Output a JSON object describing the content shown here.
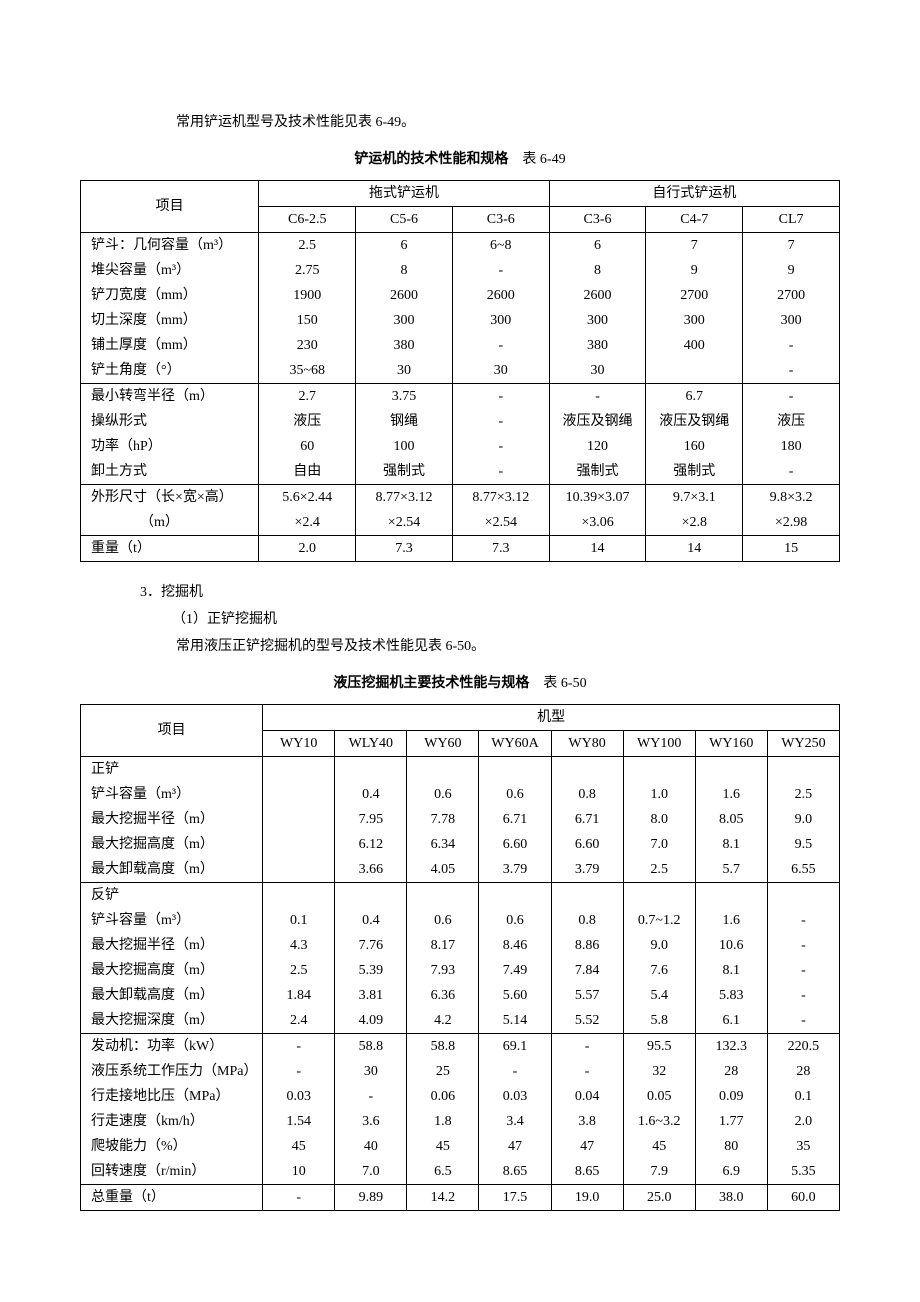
{
  "text": {
    "intro1": "常用铲运机型号及技术性能见表 6-49。",
    "title1_bold": "铲运机的技术性能和规格",
    "title1_num": "　表 6-49",
    "sec3": "3．挖掘机",
    "sec3_1": "（1）正铲挖掘机",
    "intro2": "常用液压正铲挖掘机的型号及技术性能见表 6-50。",
    "title2_bold": "液压挖掘机主要技术性能与规格",
    "title2_num": "　表 6-50"
  },
  "table1": {
    "header": {
      "item": "项目",
      "group1": "拖式铲运机",
      "group2": "自行式铲运机",
      "cols": [
        "C6-2.5",
        "C5-6",
        "C3-6",
        "C3-6",
        "C4-7",
        "CL7"
      ]
    },
    "col_widths": [
      "23.5%",
      "12.75%",
      "12.75%",
      "12.75%",
      "12.75%",
      "12.75%",
      "12.75%"
    ],
    "groups": [
      {
        "rows": [
          {
            "label": "铲斗：几何容量（m³）",
            "vals": [
              "2.5",
              "6",
              "6~8",
              "6",
              "7",
              "7"
            ]
          },
          {
            "label": "堆尖容量（m³）",
            "vals": [
              "2.75",
              "8",
              "-",
              "8",
              "9",
              "9"
            ]
          },
          {
            "label": "铲刀宽度（mm）",
            "vals": [
              "1900",
              "2600",
              "2600",
              "2600",
              "2700",
              "2700"
            ]
          },
          {
            "label": "切土深度（mm）",
            "vals": [
              "150",
              "300",
              "300",
              "300",
              "300",
              "300"
            ]
          },
          {
            "label": "铺土厚度（mm）",
            "vals": [
              "230",
              "380",
              "-",
              "380",
              "400",
              "-"
            ]
          },
          {
            "label": "铲土角度（°）",
            "vals": [
              "35~68",
              "30",
              "30",
              "30",
              "",
              "-"
            ]
          }
        ]
      },
      {
        "rows": [
          {
            "label": "最小转弯半径（m）",
            "vals": [
              "2.7",
              "3.75",
              "-",
              "-",
              "6.7",
              "-"
            ]
          },
          {
            "label": "操纵形式",
            "vals": [
              "液压",
              "钢绳",
              "-",
              "液压及钢绳",
              "液压及钢绳",
              "液压"
            ]
          },
          {
            "label": "功率（hP）",
            "vals": [
              "60",
              "100",
              "-",
              "120",
              "160",
              "180"
            ]
          },
          {
            "label": "卸土方式",
            "vals": [
              "自由",
              "强制式",
              "-",
              "强制式",
              "强制式",
              "-"
            ]
          }
        ]
      },
      {
        "rows": [
          {
            "label": "外形尺寸（长×宽×高）",
            "vals": [
              "5.6×2.44",
              "8.77×3.12",
              "8.77×3.12",
              "10.39×3.07",
              "9.7×3.1",
              "9.8×3.2"
            ]
          },
          {
            "label": "　　　　（m）",
            "vals": [
              "×2.4",
              "×2.54",
              "×2.54",
              "×3.06",
              "×2.8",
              "×2.98"
            ]
          }
        ]
      },
      {
        "rows": [
          {
            "label": "重量（t）",
            "vals": [
              "2.0",
              "7.3",
              "7.3",
              "14",
              "14",
              "15"
            ]
          }
        ]
      }
    ]
  },
  "table2": {
    "header": {
      "item": "项目",
      "group": "机型",
      "cols": [
        "WY10",
        "WLY40",
        "WY60",
        "WY60A",
        "WY80",
        "WY100",
        "WY160",
        "WY250"
      ]
    },
    "col_widths": [
      "24%",
      "9.5%",
      "9.5%",
      "9.5%",
      "9.5%",
      "9.5%",
      "9.5%",
      "9.5%",
      "9.5%"
    ],
    "groups": [
      {
        "rows": [
          {
            "label": "正铲",
            "vals": [
              "",
              "",
              "",
              "",
              "",
              "",
              "",
              ""
            ]
          },
          {
            "label": "铲斗容量（m³）",
            "vals": [
              "",
              "0.4",
              "0.6",
              "0.6",
              "0.8",
              "1.0",
              "1.6",
              "2.5"
            ]
          },
          {
            "label": "最大挖掘半径（m）",
            "vals": [
              "",
              "7.95",
              "7.78",
              "6.71",
              "6.71",
              "8.0",
              "8.05",
              "9.0"
            ]
          },
          {
            "label": "最大挖掘高度（m）",
            "vals": [
              "",
              "6.12",
              "6.34",
              "6.60",
              "6.60",
              "7.0",
              "8.1",
              "9.5"
            ]
          },
          {
            "label": "最大卸载高度（m）",
            "vals": [
              "",
              "3.66",
              "4.05",
              "3.79",
              "3.79",
              "2.5",
              "5.7",
              "6.55"
            ]
          }
        ]
      },
      {
        "rows": [
          {
            "label": "反铲",
            "vals": [
              "",
              "",
              "",
              "",
              "",
              "",
              "",
              ""
            ]
          },
          {
            "label": "铲斗容量（m³）",
            "vals": [
              "0.1",
              "0.4",
              "0.6",
              "0.6",
              "0.8",
              "0.7~1.2",
              "1.6",
              "-"
            ]
          },
          {
            "label": "最大挖掘半径（m）",
            "vals": [
              "4.3",
              "7.76",
              "8.17",
              "8.46",
              "8.86",
              "9.0",
              "10.6",
              "-"
            ]
          },
          {
            "label": "最大挖掘高度（m）",
            "vals": [
              "2.5",
              "5.39",
              "7.93",
              "7.49",
              "7.84",
              "7.6",
              "8.1",
              "-"
            ]
          },
          {
            "label": "最大卸载高度（m）",
            "vals": [
              "1.84",
              "3.81",
              "6.36",
              "5.60",
              "5.57",
              "5.4",
              "5.83",
              "-"
            ]
          },
          {
            "label": "最大挖掘深度（m）",
            "vals": [
              "2.4",
              "4.09",
              "4.2",
              "5.14",
              "5.52",
              "5.8",
              "6.1",
              "-"
            ]
          }
        ]
      },
      {
        "rows": [
          {
            "label": "发动机：功率（kW）",
            "vals": [
              "-",
              "58.8",
              "58.8",
              "69.1",
              "-",
              "95.5",
              "132.3",
              "220.5"
            ]
          },
          {
            "label": "液压系统工作压力（MPa）",
            "vals": [
              "-",
              "30",
              "25",
              "-",
              "-",
              "32",
              "28",
              "28"
            ]
          },
          {
            "label": "行走接地比压（MPa）",
            "vals": [
              "0.03",
              "-",
              "0.06",
              "0.03",
              "0.04",
              "0.05",
              "0.09",
              "0.1"
            ]
          },
          {
            "label": "行走速度（km/h）",
            "vals": [
              "1.54",
              "3.6",
              "1.8",
              "3.4",
              "3.8",
              "1.6~3.2",
              "1.77",
              "2.0"
            ]
          },
          {
            "label": "爬坡能力（%）",
            "vals": [
              "45",
              "40",
              "45",
              "47",
              "47",
              "45",
              "80",
              "35"
            ]
          },
          {
            "label": "回转速度（r/min）",
            "vals": [
              "10",
              "7.0",
              "6.5",
              "8.65",
              "8.65",
              "7.9",
              "6.9",
              "5.35"
            ]
          }
        ]
      },
      {
        "rows": [
          {
            "label": "总重量（t）",
            "vals": [
              "-",
              "9.89",
              "14.2",
              "17.5",
              "19.0",
              "25.0",
              "38.0",
              "60.0"
            ]
          }
        ]
      }
    ]
  }
}
